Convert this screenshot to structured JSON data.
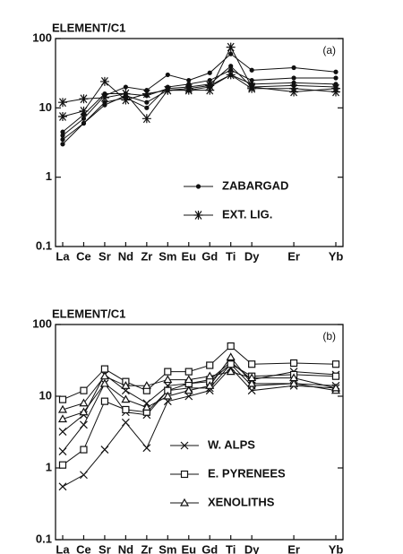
{
  "chart_data": [
    {
      "type": "line",
      "title": "ELEMENT/C1",
      "panel_label": "(a)",
      "log_scale": true,
      "categories": [
        "La",
        "Ce",
        "Sr",
        "Nd",
        "Zr",
        "Sm",
        "Eu",
        "Gd",
        "Ti",
        "Dy",
        "Er",
        "Yb"
      ],
      "ylim": [
        0.1,
        100
      ],
      "yticks": [
        0.1,
        1,
        10,
        100
      ],
      "series": [
        {
          "name": "ZABARGAD",
          "color": "#111111",
          "marker": "dot",
          "samples": [
            {
              "values": [
                4,
                7,
                15,
                20,
                18,
                30,
                25,
                32,
                60,
                35,
                38,
                33
              ]
            },
            {
              "values": [
                3.5,
                6,
                12,
                14,
                10,
                20,
                22,
                25,
                35,
                25,
                27,
                27
              ]
            },
            {
              "values": [
                3,
                6,
                11,
                15,
                12,
                18,
                18,
                20,
                30,
                22,
                23,
                22
              ]
            },
            {
              "values": [
                4.5,
                8,
                16,
                16,
                15,
                19,
                20,
                22,
                40,
                20,
                21,
                20
              ]
            }
          ]
        },
        {
          "name": "EXT. LIG.",
          "color": "#111111",
          "marker": "asterisk",
          "samples": [
            {
              "values": [
                7.5,
                9,
                24,
                13,
                16,
                18,
                18,
                18,
                75,
                20,
                17,
                19
              ]
            },
            {
              "values": [
                12,
                13.5,
                14,
                16,
                7,
                18,
                19,
                21,
                30,
                19,
                19,
                17
              ]
            }
          ]
        }
      ]
    },
    {
      "type": "line",
      "title": "ELEMENT/C1",
      "panel_label": "(b)",
      "log_scale": true,
      "categories": [
        "La",
        "Ce",
        "Sr",
        "Nd",
        "Zr",
        "Sm",
        "Eu",
        "Gd",
        "Ti",
        "Dy",
        "Er",
        "Yb"
      ],
      "ylim": [
        0.1,
        100
      ],
      "yticks": [
        0.1,
        1,
        10,
        100
      ],
      "series": [
        {
          "name": "W. ALPS",
          "color": "#111111",
          "marker": "cross",
          "samples": [
            {
              "values": [
                0.55,
                0.8,
                1.8,
                4.3,
                1.9,
                8.5,
                10,
                12,
                25,
                12,
                14,
                13
              ]
            },
            {
              "values": [
                1.7,
                4,
                15,
                6,
                5.5,
                12,
                13,
                13,
                28,
                14,
                15,
                14
              ]
            },
            {
              "values": [
                3.2,
                5.5,
                20,
                12,
                8,
                14,
                15,
                17,
                30,
                17,
                22,
                20
              ]
            }
          ]
        },
        {
          "name": "E. PYRENEES",
          "color": "#111111",
          "marker": "square",
          "samples": [
            {
              "values": [
                1.1,
                1.8,
                8.5,
                6.5,
                6,
                12,
                15,
                16,
                28,
                19,
                20,
                19
              ]
            },
            {
              "values": [
                9,
                12,
                24,
                16,
                12,
                22,
                22,
                27,
                50,
                28,
                29,
                28
              ]
            }
          ]
        },
        {
          "name": "XENOLITHS",
          "color": "#111111",
          "marker": "triangle",
          "samples": [
            {
              "values": [
                4.8,
                6,
                15,
                9,
                7,
                10,
                12,
                14,
                35,
                15,
                15,
                12
              ]
            },
            {
              "values": [
                6.5,
                8,
                19,
                14,
                14,
                17,
                17,
                19,
                22,
                18,
                18,
                13
              ]
            }
          ]
        }
      ]
    }
  ]
}
